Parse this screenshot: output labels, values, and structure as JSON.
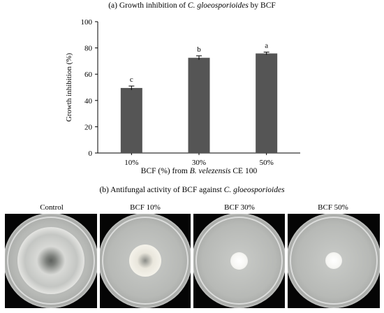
{
  "panel_a": {
    "title_prefix": "(a) Growth inhibition of ",
    "title_species": "C. gloeosporioides",
    "title_suffix": " by BCF"
  },
  "chart_data": {
    "type": "bar",
    "categories": [
      "10%",
      "30%",
      "50%"
    ],
    "values": [
      49.5,
      72.5,
      75.8
    ],
    "errors": [
      1.5,
      1.5,
      1.0
    ],
    "significance": [
      "c",
      "b",
      "a"
    ],
    "ylabel": "Growth inhibition (%)",
    "xlabel_prefix": "BCF (%) from ",
    "xlabel_species": "B. velezensis",
    "xlabel_suffix": " CE 100",
    "ylim": [
      0,
      100
    ],
    "yticks": [
      0,
      20,
      40,
      60,
      80,
      100
    ],
    "bar_color": "#555555"
  },
  "panel_b": {
    "title_prefix": "(b) Antifungal activity of BCF against ",
    "title_species": "C. gloeosporioides",
    "plates": [
      {
        "label": "Control"
      },
      {
        "label": "BCF 10%"
      },
      {
        "label": "BCF 30%"
      },
      {
        "label": "BCF 50%"
      }
    ]
  }
}
